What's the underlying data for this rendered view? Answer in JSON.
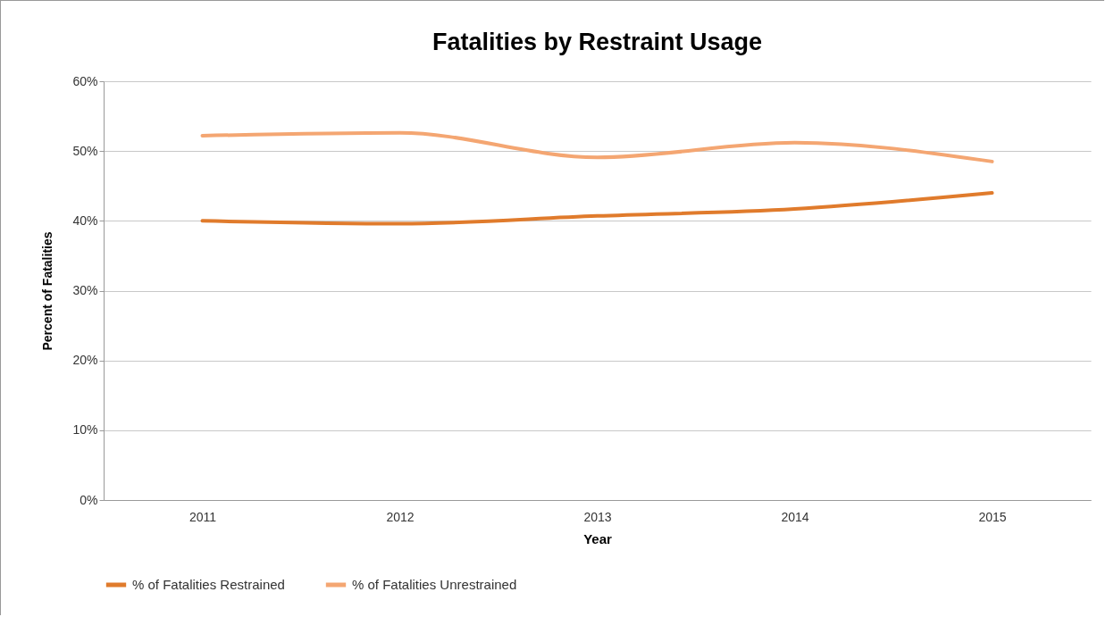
{
  "chart_data": {
    "type": "line",
    "title": "Fatalities by Restraint Usage",
    "xlabel": "Year",
    "ylabel": "Percent of Fatalities",
    "categories": [
      "2011",
      "2012",
      "2013",
      "2014",
      "2015"
    ],
    "series": [
      {
        "name": "% of Fatalities  Restrained",
        "color": "#e07b2c",
        "values": [
          40.0,
          39.6,
          40.7,
          41.7,
          44.0
        ]
      },
      {
        "name": "% of Fatalities Unrestrained",
        "color": "#f4a672",
        "values": [
          52.2,
          52.6,
          49.1,
          51.2,
          48.5
        ]
      }
    ],
    "ylim": [
      0,
      60
    ],
    "yticks": [
      {
        "value": 0,
        "label": "0%"
      },
      {
        "value": 10,
        "label": "10%"
      },
      {
        "value": 20,
        "label": "20%"
      },
      {
        "value": 30,
        "label": "30%"
      },
      {
        "value": 40,
        "label": "40%"
      },
      {
        "value": 50,
        "label": "50%"
      },
      {
        "value": 60,
        "label": "60%"
      }
    ],
    "grid": "y",
    "legend": "bottom"
  }
}
